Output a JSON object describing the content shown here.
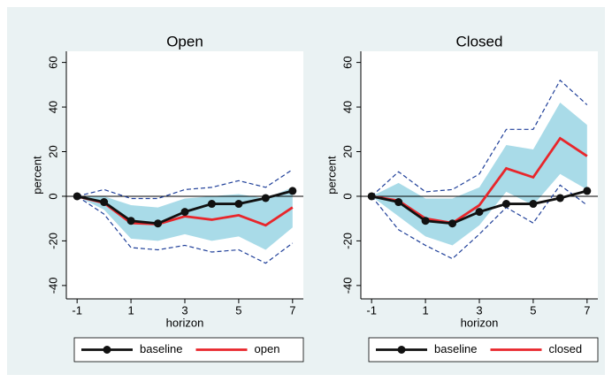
{
  "chart_data": [
    {
      "type": "line",
      "title": "Open",
      "y_label": "percent",
      "x_label": "horizon",
      "x": [
        -1,
        0,
        1,
        2,
        3,
        4,
        5,
        6,
        7
      ],
      "xlim": [
        -1.4,
        7.4
      ],
      "xticks": [
        -1,
        1,
        3,
        5,
        7
      ],
      "ylim": [
        -46,
        65
      ],
      "yticks": [
        -40,
        -20,
        0,
        20,
        40,
        60
      ],
      "refline": 0,
      "series": [
        {
          "name": "baseline",
          "color": "#111111",
          "markers": true,
          "values": [
            0,
            -2.6,
            -11,
            -12.2,
            -7,
            -3.4,
            -3.4,
            -0.8,
            2.4
          ]
        },
        {
          "name": "open",
          "color": "#e8262b",
          "markers": false,
          "values": [
            0,
            -3,
            -12,
            -12.5,
            -9,
            -10.5,
            -8.5,
            -13,
            -5
          ]
        }
      ],
      "band": {
        "color": "#a9dbe8",
        "upper": [
          0,
          0,
          -4,
          -5,
          -1,
          0,
          1,
          -1,
          4
        ],
        "lower": [
          0,
          -6,
          -19,
          -20,
          -17,
          -20,
          -18,
          -24,
          -14
        ]
      },
      "dashed": {
        "color": "#1f3f99",
        "upper": [
          0,
          3,
          -1,
          -1,
          3,
          4,
          7,
          4,
          12
        ],
        "lower": [
          0,
          -8,
          -23,
          -24,
          -22,
          -25,
          -24,
          -30,
          -21
        ]
      }
    },
    {
      "type": "line",
      "title": "Closed",
      "y_label": "percent",
      "x_label": "horizon",
      "x": [
        -1,
        0,
        1,
        2,
        3,
        4,
        5,
        6,
        7
      ],
      "xlim": [
        -1.4,
        7.4
      ],
      "xticks": [
        -1,
        1,
        3,
        5,
        7
      ],
      "ylim": [
        -46,
        65
      ],
      "yticks": [
        -40,
        -20,
        0,
        20,
        40,
        60
      ],
      "refline": 0,
      "series": [
        {
          "name": "baseline",
          "color": "#111111",
          "markers": true,
          "values": [
            0,
            -2.6,
            -11,
            -12.2,
            -7,
            -3.4,
            -3.4,
            -0.8,
            2.4
          ]
        },
        {
          "name": "closed",
          "color": "#e8262b",
          "markers": false,
          "values": [
            0,
            -2,
            -10,
            -12,
            -4,
            12.5,
            8.5,
            26,
            18
          ]
        }
      ],
      "band": {
        "color": "#a9dbe8",
        "upper": [
          0,
          6,
          -1,
          -1,
          4,
          23,
          21,
          42,
          32
        ],
        "lower": [
          0,
          -9,
          -18,
          -22,
          -13,
          2,
          -4,
          10,
          3
        ]
      },
      "dashed": {
        "color": "#1f3f99",
        "upper": [
          0,
          11,
          2,
          3,
          10,
          30,
          30,
          52,
          41
        ],
        "lower": [
          0,
          -15,
          -22,
          -28,
          -17,
          -5,
          -12,
          5,
          -4
        ]
      }
    }
  ]
}
